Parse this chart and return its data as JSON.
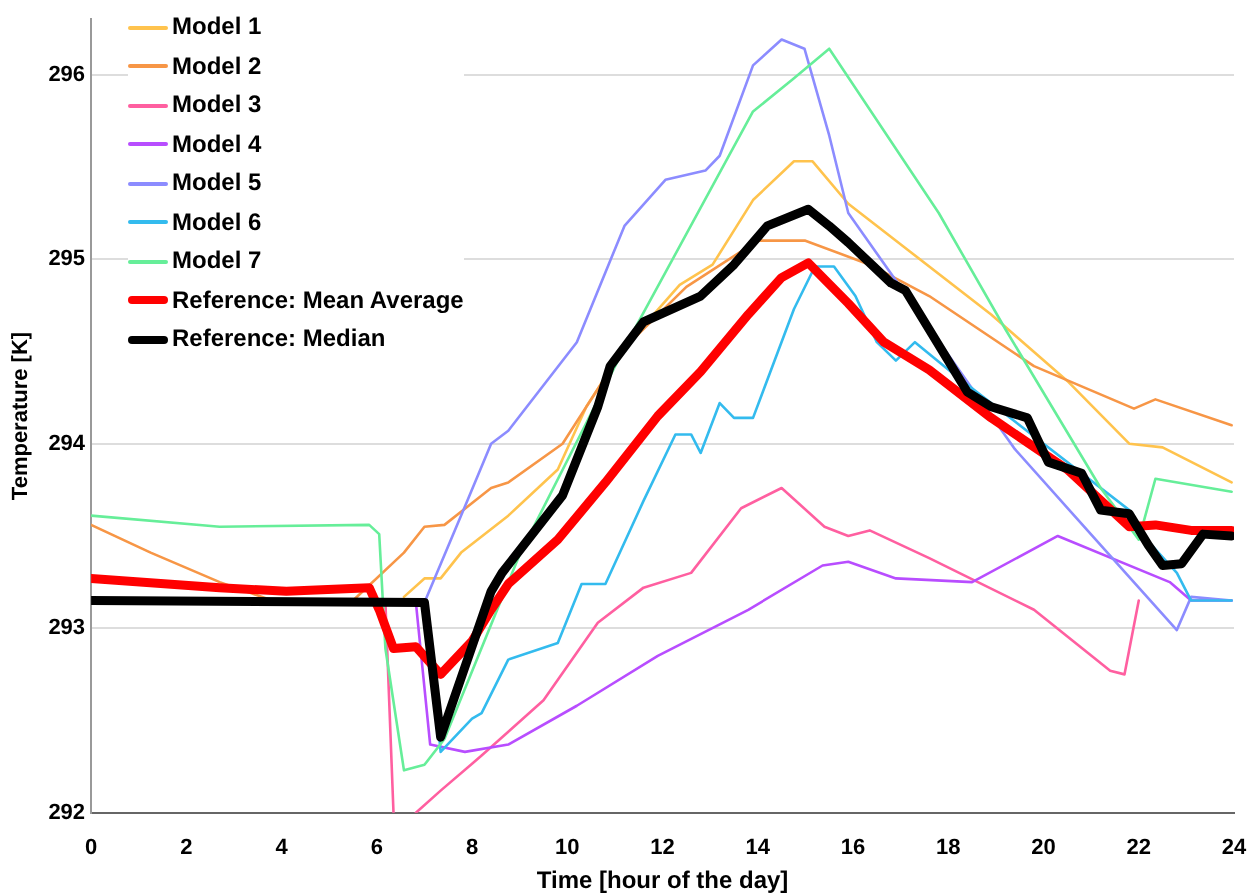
{
  "chart_data": {
    "type": "line",
    "xlabel": "Time [hour of the day]",
    "ylabel": "Temperature [K]",
    "xlim": [
      0,
      24
    ],
    "xticks": [
      0,
      2,
      4,
      6,
      8,
      10,
      12,
      14,
      16,
      18,
      20,
      22,
      24
    ],
    "ylim": [
      292,
      296.3
    ],
    "yticks": [
      292,
      293,
      294,
      295,
      296
    ],
    "grid": "y",
    "legend": "top left",
    "marker": "none",
    "line_style": "solid",
    "series": [
      {
        "name": "Model 1",
        "color": "#ffc34d",
        "x": [
          6.57,
          7.0,
          7.34,
          7.77,
          8.76,
          9.8,
          10.4,
          11.2,
          12.36,
          13.05,
          13.9,
          14.76,
          15.15,
          15.9,
          17.2,
          18.9,
          20.5,
          21.8,
          22.5,
          23.95
        ],
        "values": [
          293.17,
          293.27,
          293.27,
          293.41,
          293.61,
          293.86,
          294.2,
          294.52,
          294.86,
          294.97,
          295.32,
          295.53,
          295.53,
          295.3,
          295.04,
          294.7,
          294.34,
          294.0,
          293.98,
          293.79
        ]
      },
      {
        "name": "Model 2",
        "color": "#f79646",
        "x": [
          0,
          1.25,
          2.7,
          3.8,
          5.5,
          6.57,
          7.0,
          7.42,
          8.4,
          8.76,
          9.9,
          10.4,
          11.2,
          12.5,
          14,
          15,
          16.35,
          17.6,
          19.8,
          21.9,
          22.35,
          23.95
        ],
        "values": [
          293.56,
          293.41,
          293.25,
          293.15,
          293.15,
          293.41,
          293.55,
          293.56,
          293.76,
          293.79,
          294.0,
          294.2,
          294.52,
          294.85,
          295.1,
          295.1,
          294.97,
          294.8,
          294.42,
          294.19,
          294.24,
          294.1
        ]
      },
      {
        "name": "Model 3",
        "color": "#ff5fa0",
        "x": [
          6.18,
          6.35,
          6.6,
          6.82,
          7.34,
          8.2,
          9.5,
          10.64,
          11.6,
          12.6,
          13.65,
          14.5,
          15.4,
          15.9,
          16.35,
          17.6,
          19.8,
          21.4,
          21.7,
          22.0
        ],
        "values": [
          293.14,
          292.0,
          null,
          292.0,
          292.12,
          292.31,
          292.61,
          293.03,
          293.22,
          293.3,
          293.65,
          293.76,
          293.55,
          293.5,
          293.53,
          293.38,
          293.1,
          292.77,
          292.75,
          293.15
        ]
      },
      {
        "name": "Model 4",
        "color": "#b84dff",
        "x": [
          6.82,
          7.12,
          7.85,
          8.76,
          10.2,
          11.9,
          13.8,
          15.36,
          15.9,
          16.9,
          18.5,
          20.3,
          22.65,
          23.1,
          23.95
        ],
        "values": [
          293.14,
          292.37,
          292.33,
          292.37,
          292.58,
          292.85,
          293.1,
          293.34,
          293.36,
          293.27,
          293.25,
          293.5,
          293.25,
          293.15,
          293.15
        ]
      },
      {
        "name": "Model 5",
        "color": "#8c8cff",
        "x": [
          7.0,
          7.85,
          8.4,
          8.76,
          10.2,
          11.2,
          12.06,
          12.9,
          13.2,
          13.9,
          14.5,
          14.98,
          15.5,
          15.9,
          19.4,
          21.2,
          22.8,
          23.1,
          23.95
        ],
        "values": [
          293.14,
          293.66,
          294.0,
          294.07,
          294.55,
          295.18,
          295.43,
          295.48,
          295.56,
          296.05,
          296.19,
          296.14,
          295.67,
          295.25,
          293.97,
          293.45,
          292.99,
          293.17,
          293.15
        ]
      },
      {
        "name": "Model 6",
        "color": "#33bbee",
        "x": [
          7.05,
          7.34,
          8.0,
          8.2,
          8.76,
          9.8,
          10.3,
          10.8,
          11.6,
          12.27,
          12.6,
          12.8,
          13.2,
          13.5,
          13.9,
          14.76,
          15.2,
          15.6,
          16.05,
          16.5,
          16.9,
          17.3,
          18.1,
          21.8,
          22.06,
          22.8,
          23.1,
          23.95
        ],
        "values": [
          293.14,
          292.33,
          292.51,
          292.54,
          292.83,
          292.92,
          293.24,
          293.24,
          293.69,
          294.05,
          294.05,
          293.95,
          294.22,
          294.14,
          294.14,
          294.73,
          294.96,
          294.96,
          294.8,
          294.55,
          294.45,
          294.55,
          294.38,
          293.64,
          293.51,
          293.3,
          293.15,
          293.15
        ]
      },
      {
        "name": "Model 7",
        "color": "#66ee99",
        "x": [
          0,
          2.7,
          5.84,
          6.05,
          6.18,
          6.57,
          7.0,
          7.42,
          9.0,
          11.2,
          13.9,
          14.76,
          15.5,
          17.8,
          19.2,
          21.2,
          22.0,
          22.35,
          23.95
        ],
        "values": [
          293.61,
          293.55,
          293.56,
          293.51,
          292.89,
          292.23,
          292.26,
          292.4,
          293.4,
          294.52,
          295.8,
          295.98,
          296.14,
          295.25,
          294.62,
          293.76,
          293.48,
          293.81,
          293.74
        ]
      },
      {
        "name": "Reference: Mean Average",
        "color": "#ff0000",
        "x": [
          0,
          2.7,
          4.1,
          5.84,
          6.05,
          6.35,
          6.82,
          7.34,
          8.0,
          8.4,
          8.76,
          9.8,
          10.8,
          11.9,
          12.8,
          13.8,
          14.5,
          15.06,
          15.9,
          16.65,
          17.6,
          18.9,
          20.5,
          21.8,
          22.35,
          23.1,
          23.95
        ],
        "values": [
          293.27,
          293.22,
          293.2,
          293.22,
          293.1,
          292.89,
          292.9,
          292.75,
          292.93,
          293.1,
          293.24,
          293.48,
          293.79,
          294.15,
          294.39,
          294.7,
          294.9,
          294.98,
          294.76,
          294.55,
          294.4,
          294.14,
          293.86,
          293.55,
          293.56,
          293.53,
          293.53
        ]
      },
      {
        "name": "Reference: Median",
        "color": "#000000",
        "x": [
          0,
          7.0,
          7.34,
          8.4,
          8.63,
          9.9,
          10.64,
          10.9,
          11.6,
          12.8,
          13.5,
          14.2,
          15.06,
          15.5,
          15.9,
          16.8,
          17.1,
          18.4,
          18.9,
          19.66,
          20.1,
          20.8,
          21.2,
          21.8,
          22.2,
          22.5,
          22.9,
          23.35,
          23.95
        ],
        "values": [
          293.15,
          293.14,
          292.41,
          293.2,
          293.3,
          293.72,
          294.2,
          294.42,
          294.66,
          294.8,
          294.97,
          295.18,
          295.27,
          295.18,
          295.09,
          294.87,
          294.83,
          294.28,
          294.2,
          294.14,
          293.9,
          293.84,
          293.64,
          293.62,
          293.45,
          293.34,
          293.35,
          293.51,
          293.5
        ]
      }
    ]
  }
}
